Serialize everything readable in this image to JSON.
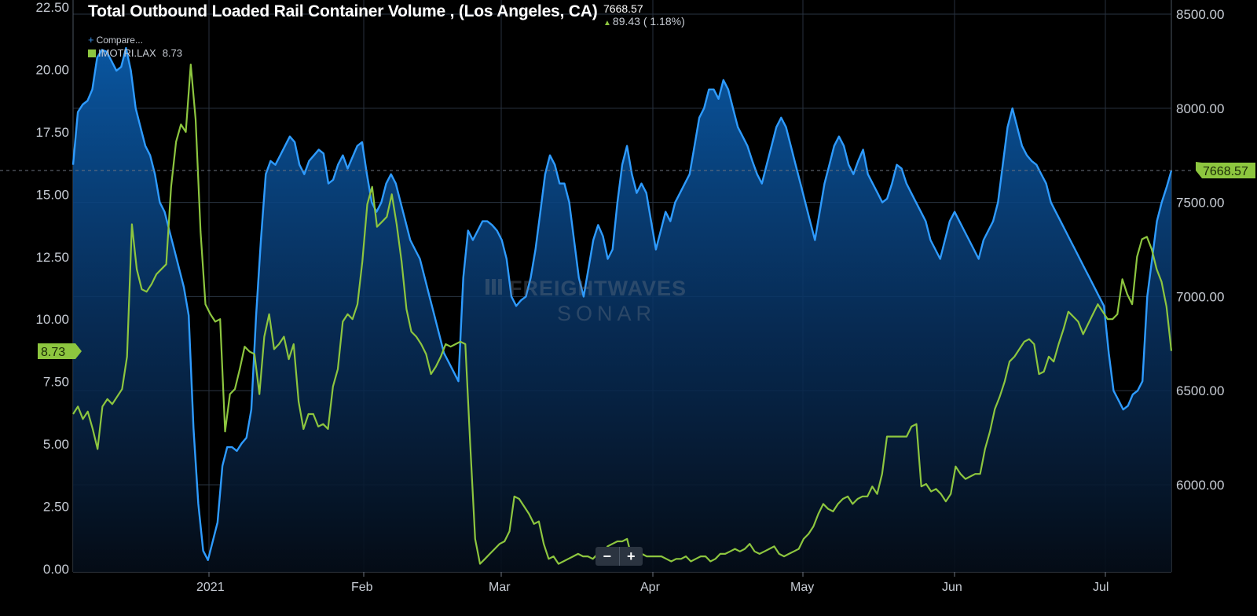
{
  "header": {
    "title": "Total Outbound Loaded Rail Container Volume , (Los Angeles, CA)",
    "current_value": "7668.57",
    "change": "89.43 ( 1.18%)",
    "change_direction": "up"
  },
  "legend": {
    "compare_label": "Compare...",
    "series_symbol": "IMOTRI.LAX",
    "series_value": "8.73"
  },
  "watermark": {
    "line1": "FREIGHTWAVES",
    "line2": "SONAR"
  },
  "zoom": {
    "minus": "−",
    "plus": "+"
  },
  "colors": {
    "left_series": "#8dc63f",
    "right_series": "#2e9bff",
    "background": "#000000"
  },
  "chart_data": {
    "type": "line",
    "x_ticks": [
      "2021",
      "Feb",
      "Mar",
      "Apr",
      "May",
      "Jun",
      "Jul"
    ],
    "left_axis": {
      "ticks": [
        "0.00",
        "2.50",
        "5.00",
        "7.50",
        "10.00",
        "12.50",
        "15.00",
        "17.50",
        "20.00",
        "22.50"
      ],
      "range": [
        0,
        22.5
      ]
    },
    "right_axis": {
      "ticks": [
        "6000.00",
        "6500.00",
        "7000.00",
        "7500.00",
        "8000.00",
        "8500.00"
      ],
      "range": [
        5550,
        8550
      ]
    },
    "left_last_label": "8.73",
    "right_last_label": "7668.57",
    "series": [
      {
        "name": "IMOTRI.LAX",
        "axis": "left",
        "color": "#8dc63f",
        "values": [
          6.2,
          6.5,
          6.0,
          6.3,
          5.6,
          4.8,
          6.5,
          6.8,
          6.6,
          6.9,
          7.2,
          8.5,
          13.8,
          12.0,
          11.2,
          11.1,
          11.4,
          11.8,
          12.0,
          12.2,
          15.3,
          17.1,
          17.8,
          17.5,
          20.2,
          18.0,
          13.5,
          10.6,
          10.2,
          9.9,
          10.0,
          5.5,
          7.0,
          7.2,
          8.0,
          8.9,
          8.7,
          8.6,
          7.0,
          9.3,
          10.2,
          8.8,
          9.0,
          9.3,
          8.4,
          9.0,
          6.7,
          5.6,
          6.2,
          6.2,
          5.7,
          5.8,
          5.6,
          7.3,
          8.0,
          9.9,
          10.2,
          10.0,
          10.6,
          12.3,
          14.6,
          15.3,
          13.7,
          13.9,
          14.1,
          15.0,
          13.8,
          12.3,
          10.4,
          9.5,
          9.3,
          9.0,
          8.6,
          7.8,
          8.1,
          8.5,
          9.0,
          8.9,
          9.0,
          9.1,
          9.0,
          5.0,
          1.2,
          0.2,
          0.4,
          0.6,
          0.8,
          1.0,
          1.1,
          1.5,
          2.9,
          2.8,
          2.5,
          2.2,
          1.8,
          1.9,
          1.0,
          0.4,
          0.5,
          0.2,
          0.3,
          0.4,
          0.5,
          0.6,
          0.5,
          0.5,
          0.4,
          0.6,
          0.5,
          0.9,
          1.0,
          1.1,
          1.1,
          1.2,
          0.4,
          0.6,
          0.6,
          0.5,
          0.5,
          0.5,
          0.5,
          0.4,
          0.3,
          0.4,
          0.4,
          0.5,
          0.3,
          0.4,
          0.5,
          0.5,
          0.3,
          0.4,
          0.6,
          0.6,
          0.7,
          0.8,
          0.7,
          0.8,
          1.0,
          0.7,
          0.6,
          0.7,
          0.8,
          0.9,
          0.6,
          0.5,
          0.6,
          0.7,
          0.8,
          1.2,
          1.4,
          1.7,
          2.2,
          2.6,
          2.4,
          2.3,
          2.6,
          2.8,
          2.9,
          2.6,
          2.8,
          2.9,
          2.9,
          3.3,
          3.0,
          3.8,
          5.3,
          5.3,
          5.3,
          5.3,
          5.3,
          5.7,
          5.8,
          3.3,
          3.4,
          3.1,
          3.2,
          3.0,
          2.7,
          3.0,
          4.1,
          3.8,
          3.6,
          3.7,
          3.8,
          3.8,
          4.8,
          5.5,
          6.4,
          6.9,
          7.5,
          8.3,
          8.5,
          8.8,
          9.1,
          9.2,
          9.0,
          7.8,
          7.9,
          8.5,
          8.3,
          9.0,
          9.6,
          10.3,
          10.1,
          9.9,
          9.4,
          9.8,
          10.2,
          10.6,
          10.3,
          10.0,
          10.0,
          10.2,
          11.6,
          11.0,
          10.6,
          12.5,
          13.2,
          13.3,
          12.8,
          12.0,
          11.5,
          10.5,
          8.73
        ]
      },
      {
        "name": "",
        "axis": "right",
        "color": "#2e9bff",
        "values": [
          7700,
          7980,
          8020,
          8040,
          8100,
          8270,
          8310,
          8300,
          8250,
          8200,
          8220,
          8320,
          8200,
          8000,
          7900,
          7800,
          7750,
          7650,
          7500,
          7450,
          7350,
          7250,
          7150,
          7050,
          6900,
          6300,
          5900,
          5650,
          5600,
          5700,
          5800,
          6100,
          6200,
          6200,
          6180,
          6220,
          6250,
          6400,
          6900,
          7300,
          7650,
          7720,
          7700,
          7750,
          7800,
          7850,
          7820,
          7700,
          7650,
          7720,
          7750,
          7780,
          7760,
          7600,
          7620,
          7700,
          7750,
          7680,
          7740,
          7800,
          7820,
          7650,
          7500,
          7450,
          7500,
          7600,
          7650,
          7600,
          7500,
          7400,
          7300,
          7250,
          7200,
          7100,
          7000,
          6900,
          6800,
          6700,
          6650,
          6600,
          6550,
          7100,
          7350,
          7300,
          7350,
          7400,
          7400,
          7380,
          7350,
          7300,
          7200,
          7000,
          6950,
          6980,
          7000,
          7100,
          7250,
          7450,
          7650,
          7750,
          7700,
          7600,
          7600,
          7500,
          7300,
          7100,
          7000,
          7150,
          7300,
          7380,
          7320,
          7200,
          7250,
          7500,
          7700,
          7800,
          7650,
          7550,
          7600,
          7550,
          7400,
          7250,
          7350,
          7450,
          7400,
          7500,
          7550,
          7600,
          7650,
          7800,
          7950,
          8000,
          8100,
          8100,
          8050,
          8150,
          8100,
          8000,
          7900,
          7850,
          7800,
          7720,
          7650,
          7600,
          7700,
          7800,
          7900,
          7950,
          7900,
          7800,
          7700,
          7600,
          7500,
          7400,
          7300,
          7450,
          7600,
          7700,
          7800,
          7850,
          7800,
          7700,
          7650,
          7720,
          7780,
          7650,
          7600,
          7550,
          7500,
          7520,
          7600,
          7700,
          7680,
          7600,
          7550,
          7500,
          7450,
          7400,
          7300,
          7250,
          7200,
          7300,
          7400,
          7450,
          7400,
          7350,
          7300,
          7250,
          7200,
          7300,
          7350,
          7400,
          7500,
          7700,
          7900,
          8000,
          7900,
          7800,
          7750,
          7720,
          7700,
          7650,
          7600,
          7500,
          7450,
          7400,
          7350,
          7300,
          7250,
          7200,
          7150,
          7100,
          7050,
          7000,
          6950,
          6700,
          6500,
          6450,
          6400,
          6420,
          6480,
          6500,
          6550,
          7000,
          7200,
          7400,
          7500,
          7580,
          7668.57
        ]
      }
    ]
  }
}
